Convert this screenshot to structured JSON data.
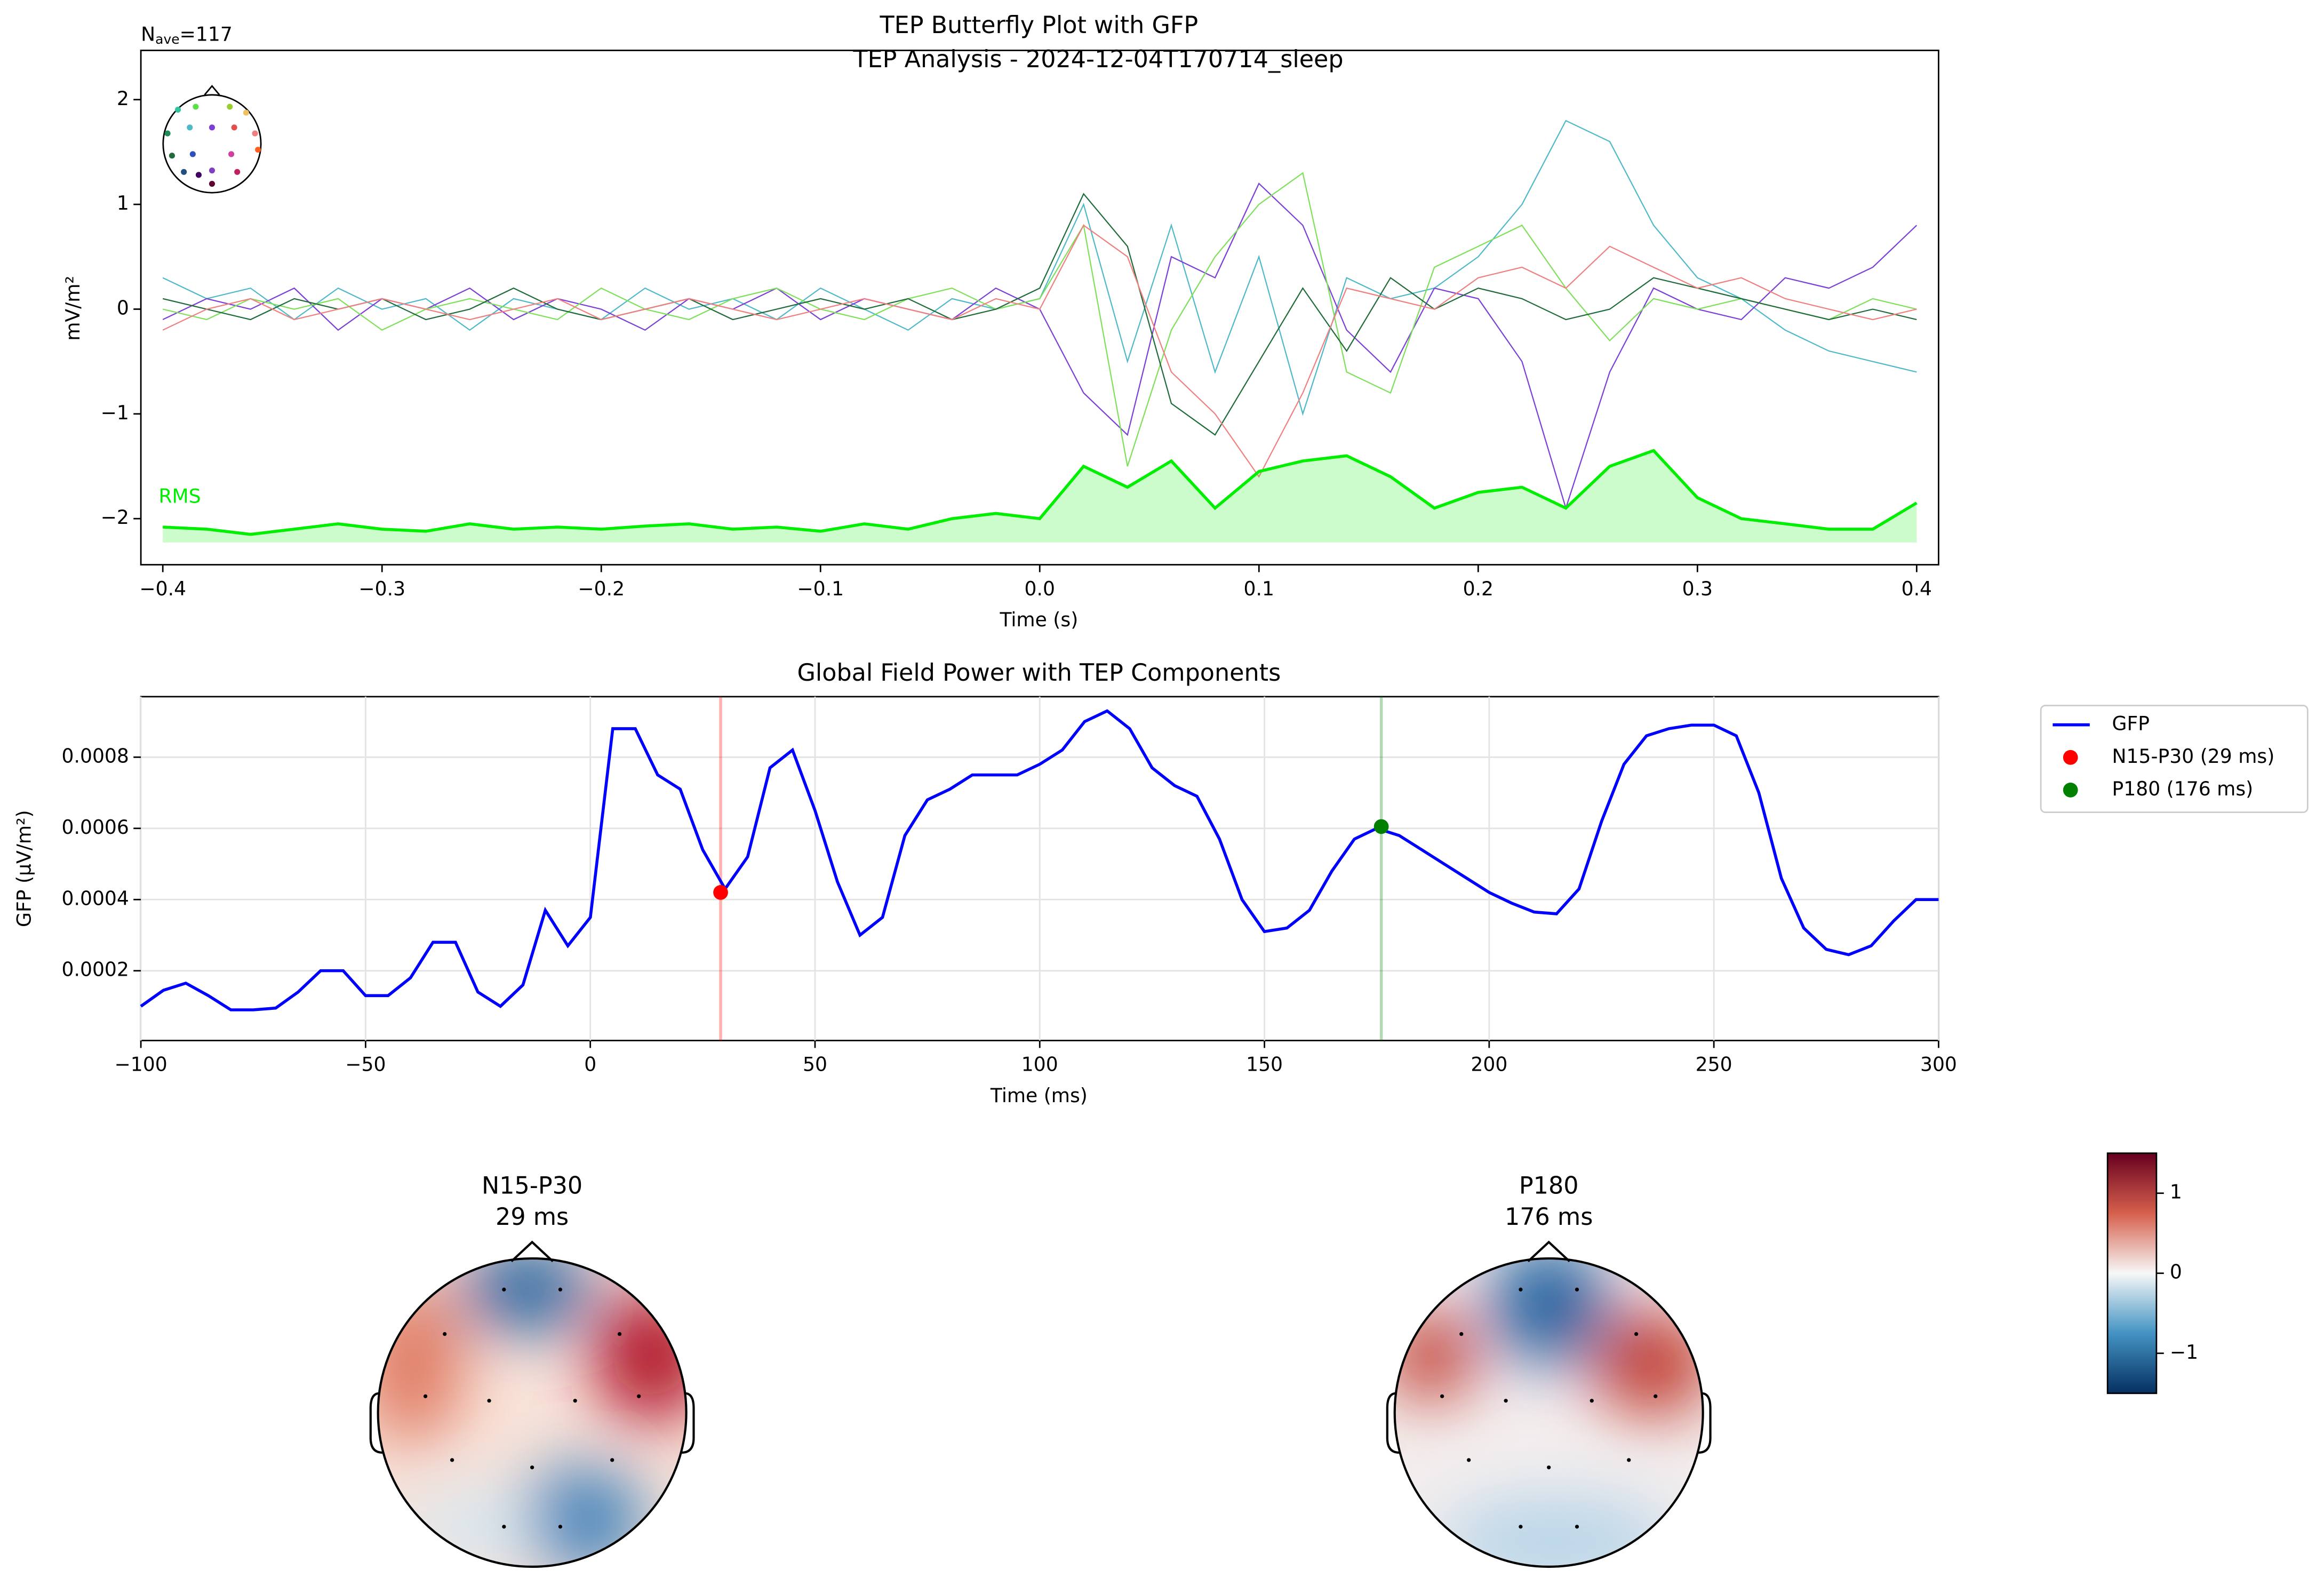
{
  "chart_data": [
    {
      "type": "line",
      "title": "TEP Butterfly Plot with GFP",
      "subtitle": "TEP Analysis - 2024-12-04T170714_sleep",
      "annotation": {
        "main": "N",
        "sub": "ave",
        "rest": "=117"
      },
      "xlabel": "Time (s)",
      "ylabel": "mV/m²",
      "xlim": [
        -0.41,
        0.41
      ],
      "ylim": [
        -2.44,
        2.47
      ],
      "xticks": [
        {
          "value": -0.4,
          "label": "−0.4"
        },
        {
          "value": -0.3,
          "label": "−0.3"
        },
        {
          "value": -0.2,
          "label": "−0.2"
        },
        {
          "value": -0.1,
          "label": "−0.1"
        },
        {
          "value": 0,
          "label": "0.0"
        },
        0.1,
        0.2,
        0.3,
        0.4
      ],
      "yticks": [
        {
          "value": -2,
          "label": "−2"
        },
        {
          "value": -1,
          "label": "−1"
        },
        0,
        1,
        2
      ],
      "x": [
        -0.4,
        -0.38,
        -0.36,
        -0.34,
        -0.32,
        -0.3,
        -0.28,
        -0.26,
        -0.24,
        -0.22,
        -0.2,
        -0.18,
        -0.16,
        -0.14,
        -0.12,
        -0.1,
        -0.08,
        -0.06,
        -0.04,
        -0.02,
        0,
        0.02,
        0.04,
        0.06,
        0.08,
        0.1,
        0.12,
        0.14,
        0.16,
        0.18,
        0.2,
        0.22,
        0.24,
        0.26,
        0.28,
        0.3,
        0.32,
        0.34,
        0.36,
        0.38,
        0.4
      ],
      "series": [
        {
          "color": "#4fb9c9",
          "values": [
            0.3,
            0.1,
            0.2,
            -0.1,
            0.2,
            0.0,
            0.1,
            -0.2,
            0.1,
            0.0,
            -0.1,
            0.2,
            0.0,
            0.1,
            -0.1,
            0.2,
            0.0,
            -0.2,
            0.1,
            0.0,
            0.1,
            1.0,
            -0.5,
            0.8,
            -0.6,
            0.5,
            -1.0,
            0.3,
            0.1,
            0.2,
            0.5,
            1.0,
            1.8,
            1.6,
            0.8,
            0.3,
            0.1,
            -0.2,
            -0.4,
            -0.5,
            -0.6
          ]
        },
        {
          "color": "#7b3fd6",
          "values": [
            -0.1,
            0.1,
            0.0,
            0.2,
            -0.2,
            0.1,
            0.0,
            0.2,
            -0.1,
            0.1,
            0.0,
            -0.2,
            0.1,
            0.0,
            0.2,
            -0.1,
            0.1,
            0.0,
            -0.1,
            0.2,
            0.0,
            -0.8,
            -1.2,
            0.5,
            0.3,
            1.2,
            0.8,
            -0.2,
            -0.6,
            0.2,
            0.1,
            -0.5,
            -1.9,
            -0.6,
            0.2,
            0.0,
            -0.1,
            0.3,
            0.2,
            0.4,
            0.8
          ]
        },
        {
          "color": "#7ee05a",
          "values": [
            0.0,
            -0.1,
            0.1,
            0.0,
            0.1,
            -0.2,
            0.0,
            0.1,
            0.0,
            -0.1,
            0.2,
            0.0,
            -0.1,
            0.1,
            0.2,
            0.0,
            -0.1,
            0.1,
            0.2,
            0.0,
            0.1,
            0.8,
            -1.5,
            -0.2,
            0.5,
            1.0,
            1.3,
            -0.6,
            -0.8,
            0.4,
            0.6,
            0.8,
            0.2,
            -0.3,
            0.1,
            0.0,
            0.1,
            0.0,
            -0.1,
            0.1,
            0.0
          ]
        },
        {
          "color": "#1f6b3a",
          "values": [
            0.1,
            0.0,
            -0.1,
            0.1,
            0.0,
            0.1,
            -0.1,
            0.0,
            0.2,
            0.0,
            -0.1,
            0.0,
            0.1,
            -0.1,
            0.0,
            0.1,
            0.0,
            0.1,
            -0.1,
            0.0,
            0.2,
            1.1,
            0.6,
            -0.9,
            -1.2,
            -0.5,
            0.2,
            -0.4,
            0.3,
            0.0,
            0.2,
            0.1,
            -0.1,
            0.0,
            0.3,
            0.2,
            0.1,
            0.0,
            -0.1,
            0.0,
            -0.1
          ]
        },
        {
          "color": "#f08080",
          "values": [
            -0.2,
            0.0,
            0.1,
            -0.1,
            0.0,
            0.1,
            0.0,
            -0.1,
            0.0,
            0.1,
            -0.1,
            0.0,
            0.1,
            0.0,
            -0.1,
            0.0,
            0.1,
            0.0,
            -0.1,
            0.1,
            0.0,
            0.8,
            0.5,
            -0.6,
            -1.0,
            -1.6,
            -0.8,
            0.2,
            0.1,
            0.0,
            0.3,
            0.4,
            0.2,
            0.6,
            0.4,
            0.2,
            0.3,
            0.1,
            0.0,
            -0.1,
            0.0
          ]
        },
        {
          "name": "RMS",
          "color": "#00ee00",
          "fill": true,
          "values": [
            -2.08,
            -2.1,
            -2.15,
            -2.1,
            -2.05,
            -2.1,
            -2.12,
            -2.05,
            -2.1,
            -2.08,
            -2.1,
            -2.07,
            -2.05,
            -2.1,
            -2.08,
            -2.12,
            -2.05,
            -2.1,
            -2.0,
            -1.95,
            -2.0,
            -1.5,
            -1.7,
            -1.45,
            -1.9,
            -1.55,
            -1.45,
            -1.4,
            -1.6,
            -1.9,
            -1.75,
            -1.7,
            -1.9,
            -1.5,
            -1.35,
            -1.8,
            -2.0,
            -2.05,
            -2.1,
            -2.1,
            -1.85
          ]
        }
      ]
    },
    {
      "type": "line",
      "title": "Global Field Power with TEP Components",
      "xlabel": "Time (ms)",
      "ylabel": "GFP (µV/m²)",
      "xlim": [
        -100,
        300
      ],
      "ylim": [
        4e-06,
        0.00097
      ],
      "grid": true,
      "legend": "outside",
      "xticks": [
        {
          "value": -100,
          "label": "−100"
        },
        {
          "value": -50,
          "label": "−50"
        },
        0,
        50,
        100,
        150,
        200,
        250,
        300
      ],
      "yticks": [
        0.0002,
        0.0004,
        0.0006,
        0.0008
      ],
      "x": [
        -100,
        -95,
        -90,
        -85,
        -80,
        -75,
        -70,
        -65,
        -60,
        -55,
        -50,
        -45,
        -40,
        -35,
        -30,
        -25,
        -20,
        -15,
        -10,
        -5,
        0,
        5,
        10,
        15,
        20,
        25,
        30,
        35,
        40,
        45,
        50,
        55,
        60,
        65,
        70,
        75,
        80,
        85,
        90,
        95,
        100,
        105,
        110,
        115,
        120,
        125,
        130,
        135,
        140,
        145,
        150,
        155,
        160,
        165,
        170,
        175,
        180,
        185,
        190,
        195,
        200,
        205,
        210,
        215,
        220,
        225,
        230,
        235,
        240,
        245,
        250,
        255,
        260,
        265,
        270,
        275,
        280,
        285,
        290,
        295,
        300
      ],
      "series": [
        {
          "name": "GFP",
          "color": "#0000ff",
          "values": [
            0.0001,
            0.000145,
            0.000165,
            0.00013,
            9e-05,
            9e-05,
            9.5e-05,
            0.00014,
            0.0002,
            0.0002,
            0.00013,
            0.00013,
            0.00018,
            0.00028,
            0.00028,
            0.00014,
            0.0001,
            0.00016,
            0.00037,
            0.00027,
            0.00035,
            0.00088,
            0.00088,
            0.00075,
            0.00071,
            0.00054,
            0.00043,
            0.00052,
            0.00077,
            0.00082,
            0.00065,
            0.00045,
            0.0003,
            0.00035,
            0.00058,
            0.00068,
            0.00071,
            0.00075,
            0.00075,
            0.00075,
            0.00078,
            0.00082,
            0.0009,
            0.00093,
            0.00088,
            0.00077,
            0.00072,
            0.00069,
            0.00057,
            0.0004,
            0.00031,
            0.00032,
            0.00037,
            0.00048,
            0.00057,
            0.0006,
            0.00058,
            0.00054,
            0.0005,
            0.00046,
            0.00042,
            0.00039,
            0.000365,
            0.00036,
            0.00043,
            0.00062,
            0.00078,
            0.00086,
            0.00088,
            0.00089,
            0.00089,
            0.00086,
            0.0007,
            0.00046,
            0.00032,
            0.00026,
            0.000245,
            0.00027,
            0.00034,
            0.0004,
            0.0004
          ]
        }
      ],
      "markers": [
        {
          "name": "N15-P30 (29 ms)",
          "color": "#ff0000",
          "x": 29,
          "y": 0.00042
        },
        {
          "name": "P180 (176 ms)",
          "color": "#008000",
          "x": 176,
          "y": 0.000605
        }
      ]
    },
    {
      "type": "topomap",
      "maps": [
        {
          "title": "N15-P30",
          "subtitle": "29 ms"
        },
        {
          "title": "P180",
          "subtitle": "176 ms"
        }
      ],
      "colorbar": {
        "lim": [
          -1.5,
          1.5
        ],
        "ticks": [
          {
            "value": -1,
            "label": "−1"
          },
          0,
          1
        ]
      }
    }
  ]
}
